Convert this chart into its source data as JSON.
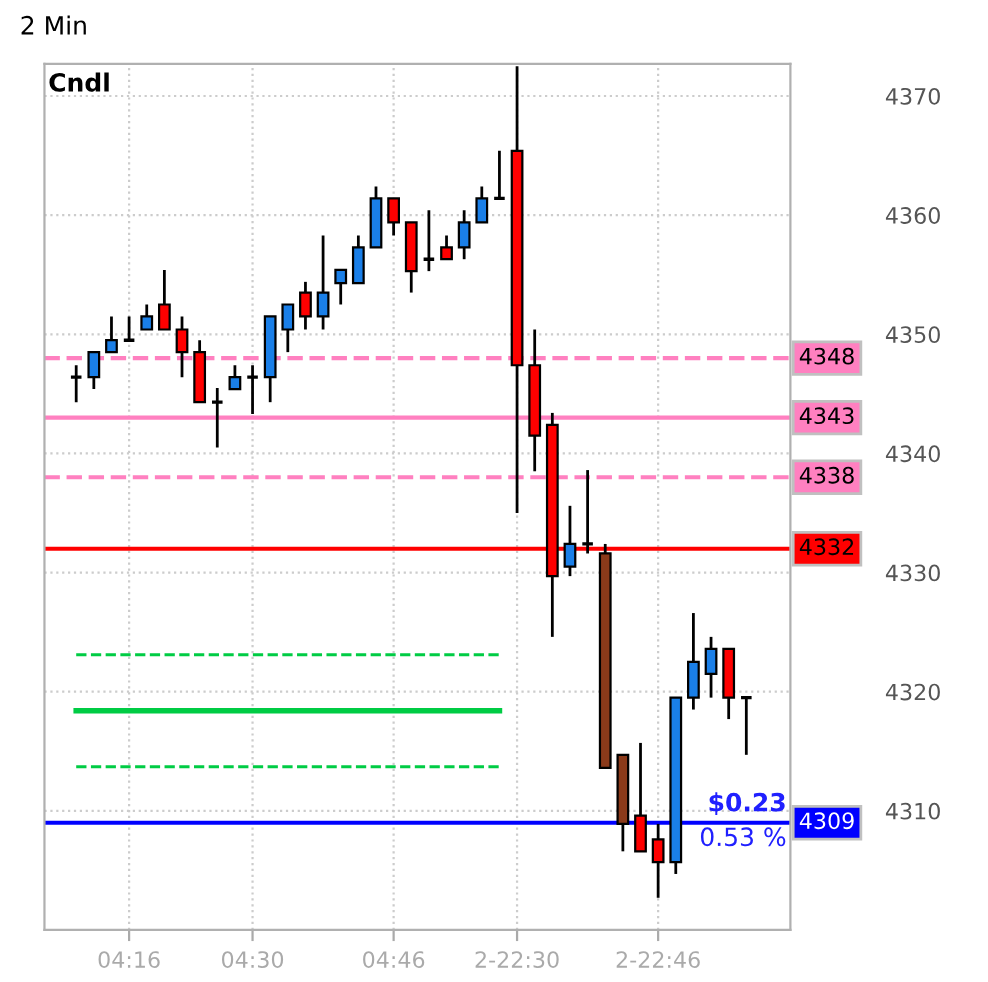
{
  "chart_data": {
    "type": "candlestick",
    "title": "2 Min",
    "categories": [
      null,
      null,
      null,
      "04:16",
      null,
      null,
      null,
      null,
      null,
      null,
      "04:30",
      null,
      null,
      null,
      null,
      null,
      null,
      null,
      "04:46",
      null,
      null,
      null,
      null,
      null,
      null,
      "2-22:30",
      null,
      null,
      null,
      null,
      null,
      null,
      null,
      "2-22:46",
      null,
      null,
      null,
      null,
      null
    ],
    "ohlc": [
      [
        4346.4,
        4347.4,
        4344.3,
        4346.4
      ],
      [
        4346.4,
        4348.5,
        4345.4,
        4348.5
      ],
      [
        4348.5,
        4351.5,
        4348.5,
        4349.5
      ],
      [
        4349.5,
        4351.5,
        4349.5,
        4349.5
      ],
      [
        4350.4,
        4352.5,
        4350.4,
        4351.5
      ],
      [
        4352.5,
        4355.4,
        4350.4,
        4350.4
      ],
      [
        4350.4,
        4351.5,
        4346.4,
        4348.5
      ],
      [
        4348.5,
        4349.5,
        4344.3,
        4344.3
      ],
      [
        4344.3,
        4345.5,
        4340.5,
        4344.3
      ],
      [
        4345.4,
        4347.4,
        4345.4,
        4346.4
      ],
      [
        4346.4,
        4347.4,
        4343.3,
        4346.4
      ],
      [
        4346.4,
        4351.5,
        4344.3,
        4351.5
      ],
      [
        4350.4,
        4352.5,
        4348.5,
        4352.5
      ],
      [
        4353.5,
        4354.4,
        4350.4,
        4351.5
      ],
      [
        4351.5,
        4358.3,
        4350.4,
        4353.5
      ],
      [
        4354.3,
        4355.4,
        4352.5,
        4355.4
      ],
      [
        4354.3,
        4358.3,
        4354.3,
        4357.3
      ],
      [
        4357.3,
        4362.4,
        4357.3,
        4361.4
      ],
      [
        4361.4,
        4361.4,
        4358.3,
        4359.4
      ],
      [
        4359.4,
        4359.4,
        4353.5,
        4355.3
      ],
      [
        4356.3,
        4360.4,
        4355.3,
        4356.3
      ],
      [
        4357.3,
        4358.3,
        4356.3,
        4356.3
      ],
      [
        4357.3,
        4360.4,
        4356.3,
        4359.4
      ],
      [
        4359.4,
        4362.4,
        4359.4,
        4361.4
      ],
      [
        4361.4,
        4365.4,
        4361.4,
        4361.4
      ],
      [
        4365.4,
        4372.5,
        4335,
        4347.4
      ],
      [
        4347.4,
        4350.4,
        4338.5,
        4341.5
      ],
      [
        4342.4,
        4343.4,
        4324.6,
        4329.7
      ],
      [
        4330.5,
        4335.6,
        4329.7,
        4332.4
      ],
      [
        4332.4,
        4338.6,
        4331.6,
        4332.4
      ],
      [
        4331.6,
        4332.4,
        4313.6,
        4313.6
      ],
      [
        4314.7,
        4314.7,
        4306.6,
        4308.9
      ],
      [
        4309.6,
        4315.7,
        4306.6,
        4306.6
      ],
      [
        4307.6,
        4308.9,
        4302.7,
        4305.7
      ],
      [
        4305.7,
        4319.5,
        4304.7,
        4319.5
      ],
      [
        4319.5,
        4326.6,
        4318.5,
        4322.5
      ],
      [
        4321.5,
        4324.6,
        4319.5,
        4323.6
      ],
      [
        4323.6,
        4323.6,
        4317.7,
        4319.5
      ],
      [
        4319.5,
        4319.5,
        4314.7,
        4319.5
      ]
    ],
    "colors": [
      "#000000",
      "#1a7fe8",
      "#1a7fe8",
      "#000000",
      "#1a7fe8",
      "#ff0000",
      "#ff0000",
      "#ff0000",
      "#000000",
      "#1a7fe8",
      "#000000",
      "#1a7fe8",
      "#1a7fe8",
      "#ff0000",
      "#1a7fe8",
      "#1a7fe8",
      "#1a7fe8",
      "#1a7fe8",
      "#ff0000",
      "#ff0000",
      "#000000",
      "#ff0000",
      "#1a7fe8",
      "#1a7fe8",
      "#000000",
      "#ff0000",
      "#ff0000",
      "#ff0000",
      "#1a7fe8",
      "#000000",
      "#8b3a1a",
      "#8b3a1a",
      "#ff0000",
      "#ff0000",
      "#1a7fe8",
      "#1a7fe8",
      "#1a7fe8",
      "#ff0000",
      "#000000"
    ],
    "series": [
      {
        "type": "line",
        "color": "#00cc44",
        "line_style": "solid",
        "values": [
          4318.4,
          4318.4,
          4318.4,
          4318.4,
          4318.4,
          4318.4,
          4318.4,
          4318.4,
          4318.4,
          4318.4,
          4318.4,
          4318.4,
          4318.4,
          4318.4,
          4318.4,
          4318.4,
          4318.4,
          4318.4,
          4318.4,
          4318.4,
          4318.4,
          4318.4,
          4318.4,
          4318.4,
          4318.4,
          null,
          null,
          null,
          null,
          null,
          null,
          null,
          null,
          null,
          null,
          null,
          null,
          null,
          null
        ]
      },
      {
        "type": "line",
        "color": "#00cc44",
        "line_style": "dashed",
        "values": [
          4323.1,
          4323.1,
          4323.1,
          4323.1,
          4323.1,
          4323.1,
          4323.1,
          4323.1,
          4323.1,
          4323.1,
          4323.1,
          4323.1,
          4323.1,
          4323.1,
          4323.1,
          4323.1,
          4323.1,
          4323.1,
          4323.1,
          4323.1,
          4323.1,
          4323.1,
          4323.1,
          4323.1,
          4323.1,
          null,
          null,
          null,
          null,
          null,
          null,
          null,
          null,
          null,
          null,
          null,
          null,
          null,
          null
        ]
      },
      {
        "type": "line",
        "color": "#00cc44",
        "line_style": "dashed",
        "values": [
          4313.7,
          4313.7,
          4313.7,
          4313.7,
          4313.7,
          4313.7,
          4313.7,
          4313.7,
          4313.7,
          4313.7,
          4313.7,
          4313.7,
          4313.7,
          4313.7,
          4313.7,
          4313.7,
          4313.7,
          4313.7,
          4313.7,
          4313.7,
          4313.7,
          4313.7,
          4313.7,
          4313.7,
          4313.7,
          null,
          null,
          null,
          null,
          null,
          null,
          null,
          null,
          null,
          null,
          null,
          null,
          null,
          null
        ]
      }
    ],
    "ref_lines": [
      {
        "axis": "y",
        "value": 4348,
        "label": "4348",
        "color": "#ff80c0",
        "line_style": "dashed"
      },
      {
        "axis": "y",
        "value": 4343,
        "label": "4343",
        "color": "#ff80c0",
        "line_style": "solid"
      },
      {
        "axis": "y",
        "value": 4338,
        "label": "4338",
        "color": "#ff80c0",
        "line_style": "dashed"
      },
      {
        "axis": "y",
        "value": 4332,
        "label": "4332",
        "color": "#ff0000",
        "line_style": "solid"
      },
      {
        "axis": "y",
        "value": 4309,
        "label": "4309",
        "color": "#0000ff",
        "line_style": "solid"
      }
    ],
    "annotations": [
      "Cndl",
      "$0.23",
      "0.53 %"
    ],
    "ylim": [
      4300,
      4372.7
    ],
    "yticks": [
      4310,
      4320,
      4330,
      4340,
      4350,
      4360,
      4370
    ],
    "grid": true
  }
}
